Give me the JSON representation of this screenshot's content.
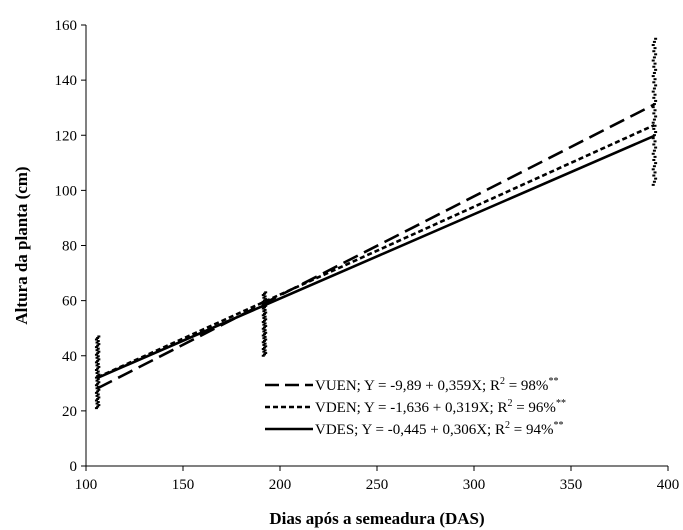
{
  "chart_data": {
    "type": "line",
    "xlabel": "Dias após a semeadura (DAS)",
    "ylabel": "Altura da planta (cm)",
    "xlim": [
      100,
      400
    ],
    "ylim": [
      0,
      160
    ],
    "x_ticks": [
      100,
      150,
      200,
      250,
      300,
      350,
      400
    ],
    "y_ticks": [
      0,
      20,
      40,
      60,
      80,
      100,
      120,
      140,
      160
    ],
    "grid": false,
    "legend_position": "bottom-right",
    "series": [
      {
        "name": "VUEN",
        "equation": "VUEN; Y = -9,89 + 0,359X; R",
        "r2_value": " = 98%",
        "significance": "**",
        "line_style": "long-dash",
        "x": [
          106,
          393
        ],
        "y": [
          28.2,
          131.2
        ]
      },
      {
        "name": "VDEN",
        "equation": "VDEN; Y = -1,636 + 0,319X; R",
        "r2_value": " = 96%",
        "significance": "**",
        "line_style": "short-dash",
        "x": [
          106,
          393
        ],
        "y": [
          32.2,
          123.7
        ]
      },
      {
        "name": "VDES",
        "equation": "VDES; Y = -0,445 + 0,306X; R",
        "r2_value": " = 94%",
        "significance": "**",
        "line_style": "solid",
        "x": [
          106,
          393
        ],
        "y": [
          32.0,
          119.8
        ]
      }
    ],
    "observations": [
      {
        "x": 106,
        "y_min": 21,
        "y_max": 47
      },
      {
        "x": 192,
        "y_min": 40,
        "y_max": 63
      },
      {
        "x": 393,
        "y_min": 102,
        "y_max": 155
      }
    ],
    "colors": {
      "lines": "#000000",
      "axes": "#000000",
      "background": "#ffffff"
    }
  }
}
